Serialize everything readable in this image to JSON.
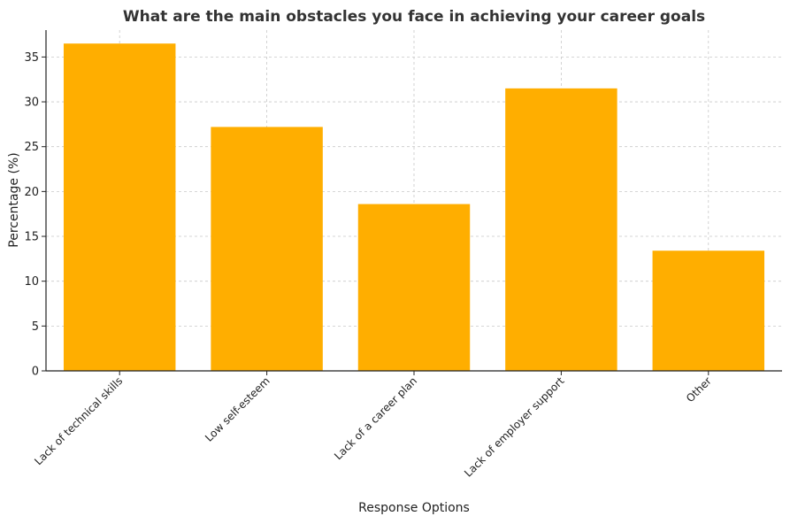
{
  "chart_data": {
    "type": "bar",
    "title": "What are the main obstacles you face in achieving your career goals",
    "xlabel": "Response Options",
    "ylabel": "Percentage (%)",
    "categories": [
      "Lack of technical skills",
      "Low self-esteem",
      "Lack of a career plan",
      "Lack of employer support",
      "Other"
    ],
    "values": [
      36.5,
      27.2,
      18.6,
      31.5,
      13.4
    ],
    "ylim": [
      0,
      38
    ],
    "yticks": [
      0,
      5,
      10,
      15,
      20,
      25,
      30,
      35
    ],
    "bar_color": "#FFAE00",
    "grid": true
  }
}
